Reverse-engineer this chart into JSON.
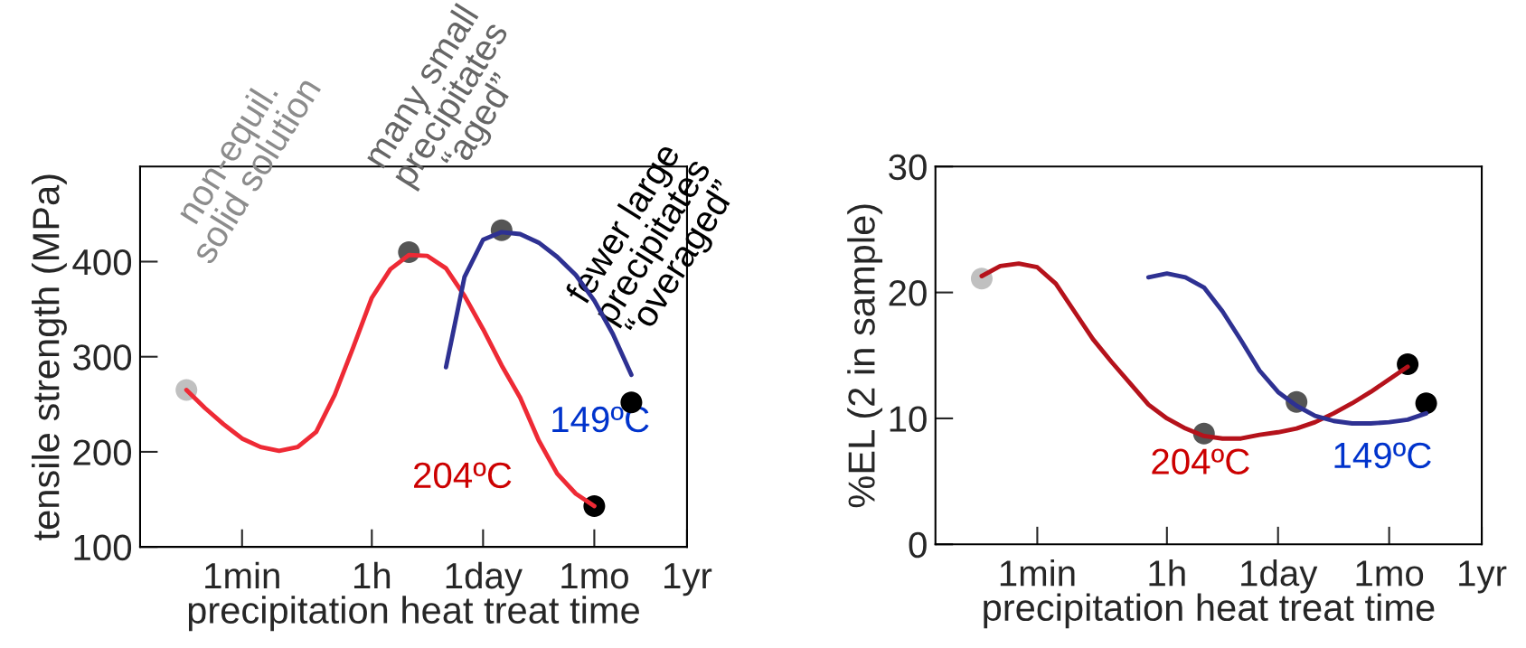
{
  "chart_data": [
    {
      "type": "line",
      "xlabel": "precipitation heat treat time",
      "ylabel": "tensile strength (MPa)",
      "categories": [
        null,
        null,
        null,
        null,
        null,
        "1min",
        null,
        null,
        null,
        null,
        null,
        null,
        "1h",
        null,
        null,
        null,
        null,
        null,
        "1day",
        null,
        null,
        null,
        null,
        null,
        "1mo",
        null,
        null,
        null,
        null,
        "1yr"
      ],
      "ylim": [
        100,
        500
      ],
      "yticks": [
        100,
        200,
        300,
        400
      ],
      "series": [
        {
          "name": "204ºC",
          "color": "#ee2a35",
          "values": [
            null,
            null,
            265,
            246,
            229,
            214,
            205,
            201,
            205,
            221,
            260,
            310,
            362,
            392,
            407,
            406,
            393,
            364,
            329,
            291,
            257,
            212,
            177,
            156,
            143,
            null,
            null,
            null,
            null,
            null
          ]
        },
        {
          "name": "149ºC",
          "color": "#2e3192",
          "values": [
            null,
            null,
            null,
            null,
            null,
            null,
            null,
            null,
            null,
            null,
            null,
            null,
            null,
            null,
            null,
            null,
            289,
            384,
            423,
            431,
            429,
            420,
            405,
            386,
            359,
            324,
            281,
            null,
            null,
            null
          ]
        },
        {
          "type": "scatter",
          "colors": [
            null,
            null,
            "#c0c0c0",
            null,
            null,
            null,
            null,
            null,
            null,
            null,
            null,
            null,
            null,
            null,
            "#555555",
            null,
            null,
            null,
            null,
            "#555555",
            null,
            null,
            null,
            null,
            "#000000",
            null,
            "#000000",
            null,
            null,
            null
          ],
          "values": [
            null,
            null,
            265,
            null,
            null,
            null,
            null,
            null,
            null,
            null,
            null,
            null,
            null,
            null,
            410,
            null,
            null,
            null,
            null,
            433,
            null,
            null,
            null,
            null,
            143,
            null,
            252,
            null,
            null,
            null
          ]
        }
      ],
      "annotations": [
        "non-equil.\nsolid solution",
        "many small\nprecipitates\n“aged”",
        "fewer large\nprecipitates\n“overaged”"
      ]
    },
    {
      "type": "line",
      "xlabel": "precipitation heat treat time",
      "ylabel": "%EL (2 in sample)",
      "categories": [
        null,
        null,
        null,
        null,
        null,
        "1min",
        null,
        null,
        null,
        null,
        null,
        null,
        "1h",
        null,
        null,
        null,
        null,
        null,
        "1day",
        null,
        null,
        null,
        null,
        null,
        "1mo",
        null,
        null,
        null,
        null,
        "1yr"
      ],
      "ylim": [
        0,
        30
      ],
      "yticks": [
        0,
        10,
        20,
        30
      ],
      "series": [
        {
          "name": "204ºC",
          "color": "#b5121b",
          "values": [
            null,
            null,
            21.3,
            22.1,
            22.3,
            22.0,
            20.7,
            18.5,
            16.3,
            14.5,
            12.8,
            11.1,
            10.0,
            9.2,
            8.6,
            8.4,
            8.4,
            8.7,
            8.9,
            9.2,
            9.7,
            10.4,
            11.2,
            12.1,
            13.1,
            14.1,
            null,
            null,
            null,
            null
          ]
        },
        {
          "name": "149ºC",
          "color": "#2e3192",
          "values": [
            null,
            null,
            null,
            null,
            null,
            null,
            null,
            null,
            null,
            null,
            null,
            21.2,
            21.5,
            21.2,
            20.4,
            18.5,
            16.2,
            13.8,
            12.1,
            11.0,
            10.2,
            9.8,
            9.6,
            9.6,
            9.7,
            9.9,
            10.4,
            null,
            null,
            null
          ]
        },
        {
          "type": "scatter",
          "colors": [
            null,
            null,
            "#c0c0c0",
            null,
            null,
            null,
            null,
            null,
            null,
            null,
            null,
            null,
            null,
            null,
            "#555555",
            null,
            null,
            null,
            null,
            "#555555",
            null,
            null,
            null,
            null,
            null,
            "#000000",
            "#000000",
            null,
            null,
            null
          ],
          "values": [
            null,
            null,
            21.1,
            null,
            null,
            null,
            null,
            null,
            null,
            null,
            null,
            null,
            null,
            null,
            8.8,
            null,
            null,
            null,
            null,
            11.3,
            null,
            null,
            null,
            null,
            null,
            14.3,
            11.2,
            null,
            null,
            null
          ]
        }
      ]
    }
  ]
}
